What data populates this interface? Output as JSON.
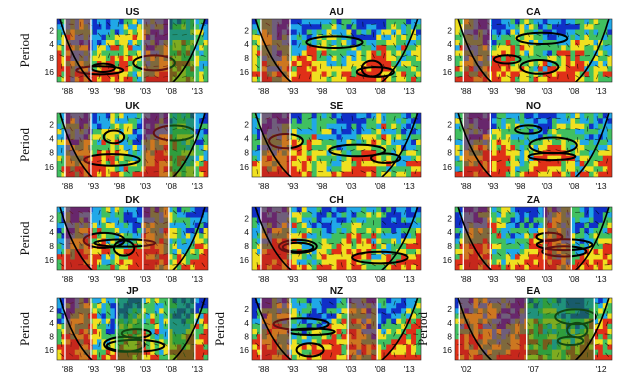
{
  "colors": {
    "low": "#1030c8",
    "mid_low": "#20a8e8",
    "mid": "#40c060",
    "high": "#f0e020",
    "peak": "#e03018",
    "crisis_shade": "#b02020",
    "recovery_shade": "#208020",
    "contour": "#000000",
    "separator": "#ffffff"
  },
  "chart_data": [
    {
      "type": "heatmap",
      "title": "US",
      "ylabel": "Period",
      "yticks": [
        "2",
        "4",
        "8",
        "16"
      ],
      "xticks": [
        "'88",
        "'93",
        "'98",
        "'03",
        "'08",
        "'13"
      ],
      "shaded": [
        {
          "from": "'88",
          "to": "'93",
          "color": "red"
        },
        {
          "from": "'03",
          "to": "'08",
          "color": "red"
        },
        {
          "from": "'08",
          "to": "'13",
          "color": "green"
        }
      ]
    },
    {
      "type": "heatmap",
      "title": "AU",
      "ylabel": "",
      "yticks": [
        "2",
        "4",
        "8",
        "16"
      ],
      "xticks": [
        "'88",
        "'93",
        "'98",
        "'03",
        "'08",
        "'13"
      ],
      "shaded": [
        {
          "from": "'88",
          "to": "'93",
          "color": "red"
        }
      ]
    },
    {
      "type": "heatmap",
      "title": "CA",
      "ylabel": "",
      "yticks": [
        "2",
        "4",
        "8",
        "16"
      ],
      "xticks": [
        "'88",
        "'93",
        "'98",
        "'03",
        "'08",
        "'13"
      ],
      "shaded": [
        {
          "from": "'88",
          "to": "'93",
          "color": "red"
        }
      ]
    },
    {
      "type": "heatmap",
      "title": "UK",
      "ylabel": "Period",
      "yticks": [
        "2",
        "4",
        "8",
        "16"
      ],
      "xticks": [
        "'88",
        "'93",
        "'98",
        "'03",
        "'08",
        "'13"
      ],
      "shaded": [
        {
          "from": "'88",
          "to": "'93",
          "color": "red"
        },
        {
          "from": "'03",
          "to": "'08",
          "color": "red"
        },
        {
          "from": "'08",
          "to": "'13",
          "color": "green"
        }
      ]
    },
    {
      "type": "heatmap",
      "title": "SE",
      "ylabel": "",
      "yticks": [
        "2",
        "4",
        "8",
        "16"
      ],
      "xticks": [
        "'88",
        "'93",
        "'98",
        "'03",
        "'08",
        "'13"
      ],
      "shaded": [
        {
          "from": "'88",
          "to": "'93",
          "color": "red"
        }
      ]
    },
    {
      "type": "heatmap",
      "title": "NO",
      "ylabel": "",
      "yticks": [
        "2",
        "4",
        "8",
        "16"
      ],
      "xticks": [
        "'88",
        "'93",
        "'98",
        "'03",
        "'08",
        "'13"
      ],
      "shaded": [
        {
          "from": "'88",
          "to": "'93",
          "color": "red"
        }
      ]
    },
    {
      "type": "heatmap",
      "title": "DK",
      "ylabel": "Period",
      "yticks": [
        "2",
        "4",
        "8",
        "16"
      ],
      "xticks": [
        "'88",
        "'93",
        "'98",
        "'03",
        "'08",
        "'13"
      ],
      "shaded": [
        {
          "from": "'88",
          "to": "'93",
          "color": "red"
        },
        {
          "from": "'03",
          "to": "'08",
          "color": "red"
        }
      ]
    },
    {
      "type": "heatmap",
      "title": "CH",
      "ylabel": "",
      "yticks": [
        "2",
        "4",
        "8",
        "16"
      ],
      "xticks": [
        "'88",
        "'93",
        "'98",
        "'03",
        "'08",
        "'13"
      ],
      "shaded": [
        {
          "from": "'88",
          "to": "'93",
          "color": "red"
        }
      ]
    },
    {
      "type": "heatmap",
      "title": "ZA",
      "ylabel": "",
      "yticks": [
        "2",
        "4",
        "8",
        "16"
      ],
      "xticks": [
        "'88",
        "'93",
        "'98",
        "'03",
        "'08",
        "'13"
      ],
      "shaded": [
        {
          "from": "'88",
          "to": "'93",
          "color": "red"
        },
        {
          "from": "'03",
          "to": "'08",
          "color": "red"
        }
      ]
    },
    {
      "type": "heatmap",
      "title": "JP",
      "ylabel": "Period",
      "yticks": [
        "2",
        "4",
        "8",
        "16"
      ],
      "xticks": [
        "'88",
        "'93",
        "'98",
        "'03",
        "'08",
        "'13"
      ],
      "shaded": [
        {
          "from": "'88",
          "to": "'93",
          "color": "red"
        },
        {
          "from": "'98",
          "to": "'03",
          "color": "green"
        },
        {
          "from": "'08",
          "to": "'13",
          "color": "green"
        }
      ]
    },
    {
      "type": "heatmap",
      "title": "NZ",
      "ylabel": "Period",
      "yticks": [
        "2",
        "4",
        "8",
        "16"
      ],
      "xticks": [
        "'88",
        "'93",
        "'98",
        "'03",
        "'08",
        "'13"
      ],
      "shaded": [
        {
          "from": "'88",
          "to": "'93",
          "color": "red"
        },
        {
          "from": "'03",
          "to": "'08",
          "color": "red"
        }
      ]
    },
    {
      "type": "heatmap",
      "title": "EA",
      "ylabel": "Period",
      "yticks": [
        "2",
        "4",
        "8",
        "16"
      ],
      "xticks": [
        "'02",
        "'07",
        "'12"
      ],
      "shaded": [
        {
          "from": "'02",
          "to": "'07",
          "color": "red"
        },
        {
          "from": "'07",
          "to": "'12",
          "color": "green"
        }
      ]
    }
  ]
}
